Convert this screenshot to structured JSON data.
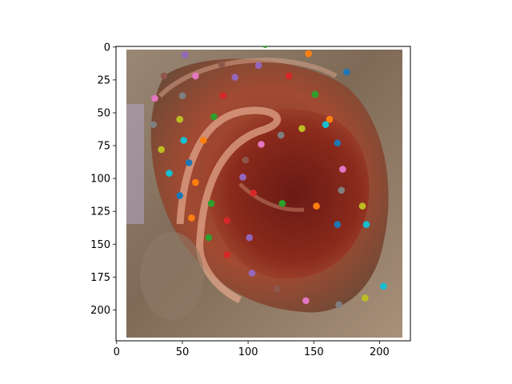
{
  "figure": {
    "image_semantic": "ear-photo-with-landmark-points",
    "point_colors": [
      "#1f77b4",
      "#ff7f0e",
      "#2ca02c",
      "#d62728",
      "#9467bd",
      "#8c564b",
      "#e377c2",
      "#7f7f7f",
      "#bcbd22",
      "#17becf"
    ]
  },
  "chart_data": {
    "type": "scatter",
    "title": "",
    "xlabel": "",
    "ylabel": "",
    "xlim": [
      -0.5,
      223.5
    ],
    "ylim": [
      223.5,
      -0.5
    ],
    "y_inverted": true,
    "grid": false,
    "x_ticks": [
      0,
      50,
      100,
      150,
      200
    ],
    "x_tick_labels": [
      "0",
      "50",
      "100",
      "150",
      "200"
    ],
    "y_ticks": [
      0,
      25,
      50,
      75,
      100,
      125,
      150,
      175,
      200
    ],
    "y_tick_labels": [
      "0",
      "25",
      "50",
      "75",
      "100",
      "125",
      "150",
      "175",
      "200"
    ],
    "series": [
      {
        "color": "#1f77b4",
        "points": [
          [
            175,
            19
          ],
          [
            55,
            88
          ],
          [
            48,
            113
          ],
          [
            168,
            73
          ],
          [
            168,
            135
          ]
        ]
      },
      {
        "color": "#ff7f0e",
        "points": [
          [
            146,
            5
          ],
          [
            66,
            71
          ],
          [
            60,
            103
          ],
          [
            162,
            55
          ],
          [
            152,
            121
          ],
          [
            57,
            130
          ]
        ]
      },
      {
        "color": "#2ca02c",
        "points": [
          [
            113,
            -2
          ],
          [
            74,
            53
          ],
          [
            151,
            36
          ],
          [
            72,
            119
          ],
          [
            126,
            119
          ],
          [
            70,
            145
          ]
        ]
      },
      {
        "color": "#d62728",
        "points": [
          [
            131,
            22
          ],
          [
            81,
            37
          ],
          [
            104,
            111
          ],
          [
            84,
            132
          ],
          [
            84,
            158
          ]
        ]
      },
      {
        "color": "#9467bd",
        "points": [
          [
            52,
            6
          ],
          [
            90,
            23
          ],
          [
            108,
            14
          ],
          [
            96,
            99
          ],
          [
            101,
            145
          ],
          [
            103,
            172
          ]
        ]
      },
      {
        "color": "#8c564b",
        "points": [
          [
            80,
            13
          ],
          [
            36,
            22
          ],
          [
            98,
            86
          ],
          [
            122,
            184
          ]
        ]
      },
      {
        "color": "#e377c2",
        "points": [
          [
            60,
            22
          ],
          [
            29,
            39
          ],
          [
            110,
            74
          ],
          [
            172,
            93
          ],
          [
            144,
            193
          ]
        ]
      },
      {
        "color": "#7f7f7f",
        "points": [
          [
            50,
            37
          ],
          [
            28,
            59
          ],
          [
            125,
            67
          ],
          [
            171,
            109
          ],
          [
            169,
            196
          ]
        ]
      },
      {
        "color": "#bcbd22",
        "points": [
          [
            48,
            55
          ],
          [
            34,
            78
          ],
          [
            141,
            62
          ],
          [
            187,
            121
          ],
          [
            189,
            191
          ]
        ]
      },
      {
        "color": "#17becf",
        "points": [
          [
            51,
            71
          ],
          [
            40,
            96
          ],
          [
            159,
            59
          ],
          [
            190,
            135
          ],
          [
            203,
            182
          ]
        ]
      }
    ]
  }
}
